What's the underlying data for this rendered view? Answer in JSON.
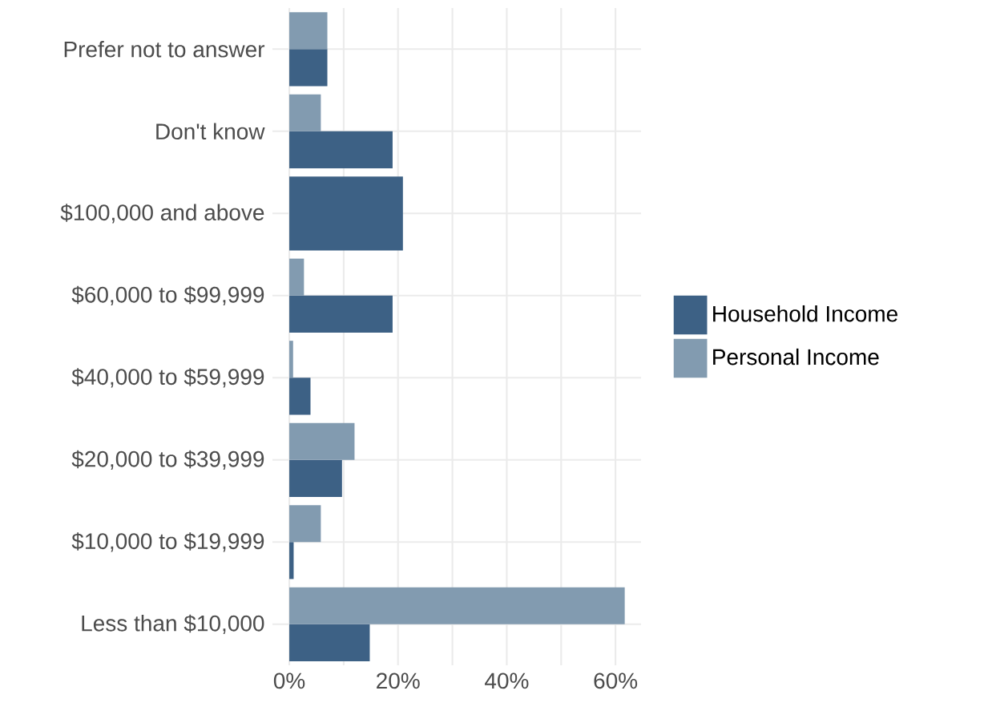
{
  "chart_data": {
    "type": "bar",
    "orientation": "horizontal",
    "categories": [
      "Prefer not to answer",
      "Don't know",
      "$100,000 and above",
      "$60,000 to $99,999",
      "$40,000 to $59,999",
      "$20,000 to $39,999",
      "$10,000 to $19,999",
      "Less than $10,000"
    ],
    "series": [
      {
        "name": "Household Income",
        "color": "#3d6185",
        "values": [
          7.0,
          19.0,
          20.9,
          19.0,
          3.9,
          9.7,
          0.8,
          14.8
        ]
      },
      {
        "name": "Personal Income",
        "color": "#829bb0",
        "values": [
          7.0,
          5.8,
          null,
          2.7,
          0.7,
          12.0,
          5.8,
          61.7
        ]
      }
    ],
    "xlim": [
      -3.1,
      64.7
    ],
    "xticks": [
      {
        "value": 0,
        "label": "0%"
      },
      {
        "value": 10,
        "label": null
      },
      {
        "value": 20,
        "label": "20%"
      },
      {
        "value": 30,
        "label": null
      },
      {
        "value": 40,
        "label": "40%"
      },
      {
        "value": 50,
        "label": null
      },
      {
        "value": 60,
        "label": "60%"
      }
    ],
    "grid": true,
    "legend": "right"
  }
}
